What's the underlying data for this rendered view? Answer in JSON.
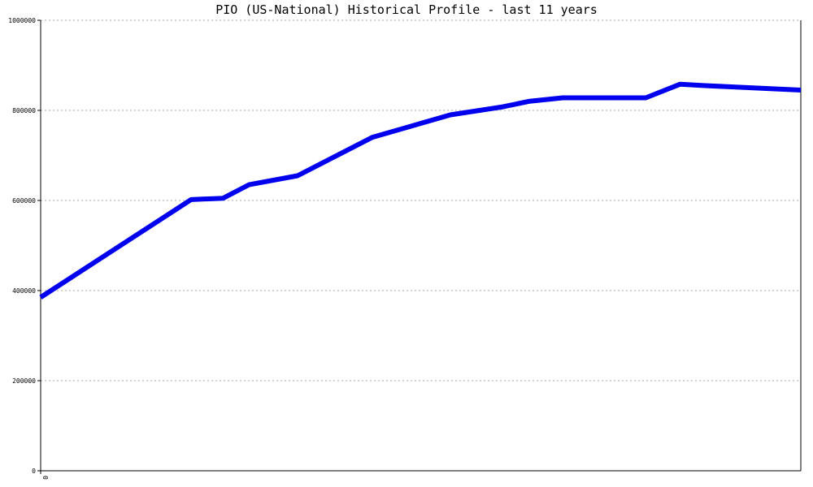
{
  "chart_data": {
    "type": "line",
    "title": "PIO (US-National) Historical Profile - last 11 years",
    "xlabel": "",
    "ylabel": "",
    "x_tick_labels": [
      "0"
    ],
    "y_tick_labels": [
      "0",
      "200000",
      "400000",
      "600000",
      "800000",
      "1000000"
    ],
    "y_ticks": [
      0,
      200000,
      400000,
      600000,
      800000,
      1000000
    ],
    "ylim": [
      0,
      1000000
    ],
    "grid": true,
    "legend": "none",
    "series": [
      {
        "color": "#0000ee",
        "x": [
          0,
          1.98,
          2.4,
          2.74,
          3.38,
          4.36,
          5.39,
          6.08,
          6.42,
          6.87,
          7.96,
          8.41,
          8.74,
          10.0
        ],
        "values": [
          385000,
          602000,
          605000,
          635000,
          655000,
          740000,
          790000,
          808000,
          820000,
          828000,
          828000,
          858000,
          855000,
          845000
        ]
      }
    ],
    "xlim": [
      0,
      10.0
    ],
    "colors": {
      "line": "#0000ee",
      "grid": "#aaaaaa",
      "axis": "#000000"
    }
  }
}
